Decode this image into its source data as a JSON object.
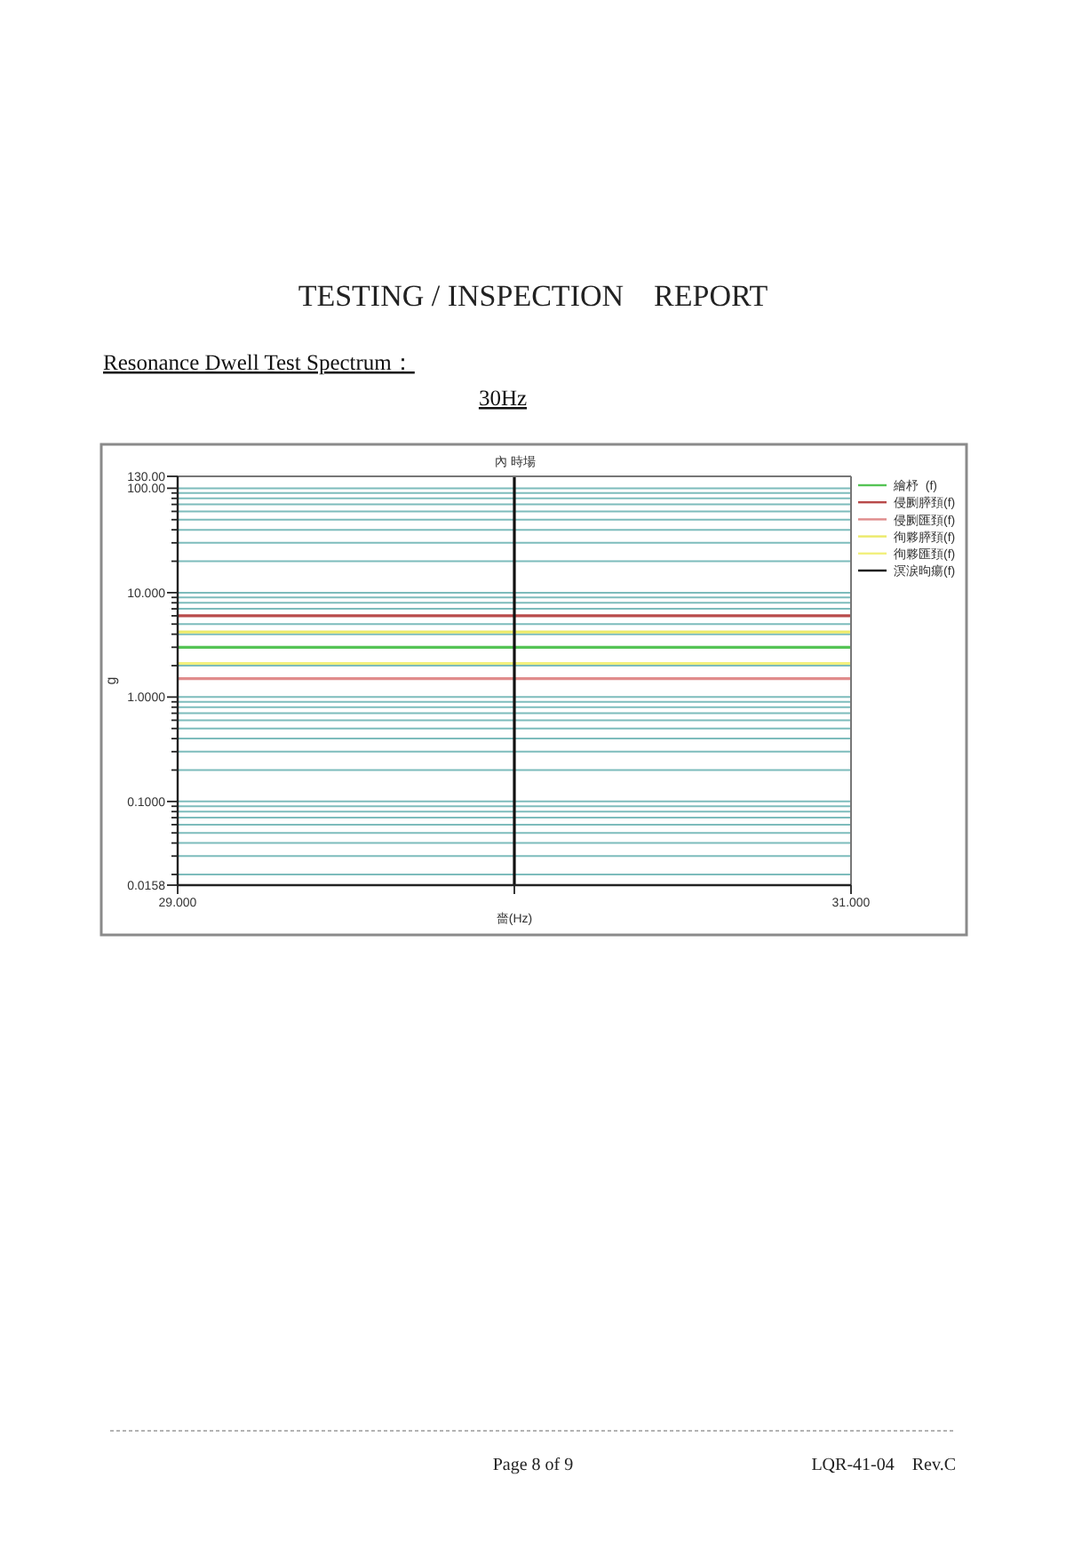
{
  "chart_data": {
    "type": "line",
    "title": "TESTING / INSPECTION    REPORT",
    "subtitle": "Resonance Dwell Test Spectrum：",
    "xlabel": "嗇(Hz)",
    "ylabel": "g",
    "log": "y",
    "grid": "y",
    "legend": "right",
    "xlim": [
      29,
      31
    ],
    "xticks": [
      {
        "value": 29,
        "label": "29.000"
      },
      {
        "value": 30,
        "label": null
      },
      {
        "value": 31,
        "label": "31.000"
      }
    ],
    "ylim": [
      0.0158,
      130
    ],
    "yticks": [
      {
        "value": 0.0158,
        "label": "0.0158"
      },
      {
        "value": 0.02,
        "label": null
      },
      {
        "value": 0.03,
        "label": null
      },
      {
        "value": 0.04,
        "label": null
      },
      {
        "value": 0.05,
        "label": null
      },
      {
        "value": 0.06,
        "label": null
      },
      {
        "value": 0.07,
        "label": null
      },
      {
        "value": 0.08,
        "label": null
      },
      {
        "value": 0.09,
        "label": null
      },
      {
        "value": 0.1,
        "label": "0.1000"
      },
      {
        "value": 0.2,
        "label": null
      },
      {
        "value": 0.3,
        "label": null
      },
      {
        "value": 0.4,
        "label": null
      },
      {
        "value": 0.5,
        "label": null
      },
      {
        "value": 0.6,
        "label": null
      },
      {
        "value": 0.7,
        "label": null
      },
      {
        "value": 0.8,
        "label": null
      },
      {
        "value": 0.9,
        "label": null
      },
      {
        "value": 1,
        "label": "1.0000"
      },
      {
        "value": 2,
        "label": null
      },
      {
        "value": 3,
        "label": null
      },
      {
        "value": 4,
        "label": null
      },
      {
        "value": 5,
        "label": null
      },
      {
        "value": 6,
        "label": null
      },
      {
        "value": 7,
        "label": null
      },
      {
        "value": 8,
        "label": null
      },
      {
        "value": 9,
        "label": null
      },
      {
        "value": 10,
        "label": "10.000"
      },
      {
        "value": 20,
        "label": null
      },
      {
        "value": 30,
        "label": null
      },
      {
        "value": 40,
        "label": null
      },
      {
        "value": 50,
        "label": null
      },
      {
        "value": 60,
        "label": null
      },
      {
        "value": 70,
        "label": null
      },
      {
        "value": 80,
        "label": null
      },
      {
        "value": 90,
        "label": null
      },
      {
        "value": 100,
        "label": "100.00"
      },
      {
        "value": 130,
        "label": "130.00"
      }
    ],
    "series": [
      {
        "name": "繪杼  (f)",
        "color": "#55c455",
        "x": [
          29,
          31
        ],
        "values": [
          3,
          3
        ]
      },
      {
        "name": "侵劂膵頚(f)",
        "color": "#b84a4a",
        "x": [
          29,
          31
        ],
        "values": [
          6,
          6
        ]
      },
      {
        "name": "侵劂匯頚(f)",
        "color": "#e08c8c",
        "x": [
          29,
          31
        ],
        "values": [
          1.5,
          1.5
        ]
      },
      {
        "name": "徇夥膵頚(f)",
        "color": "#ecea6a",
        "x": [
          29,
          31
        ],
        "values": [
          4.2,
          4.2
        ]
      },
      {
        "name": "徇夥匯頚(f)",
        "color": "#f2f07e",
        "x": [
          29,
          31
        ],
        "values": [
          2.1,
          2.1
        ]
      },
      {
        "name": "溟涙昫瘍(f)",
        "color": "#111111",
        "x": [
          30,
          30
        ],
        "values": [
          0.0158,
          130
        ]
      }
    ],
    "annotations": [
      "30Hz",
      "內 時場",
      "Page 8 of 9",
      "LQR-41-04    Rev.C"
    ]
  }
}
